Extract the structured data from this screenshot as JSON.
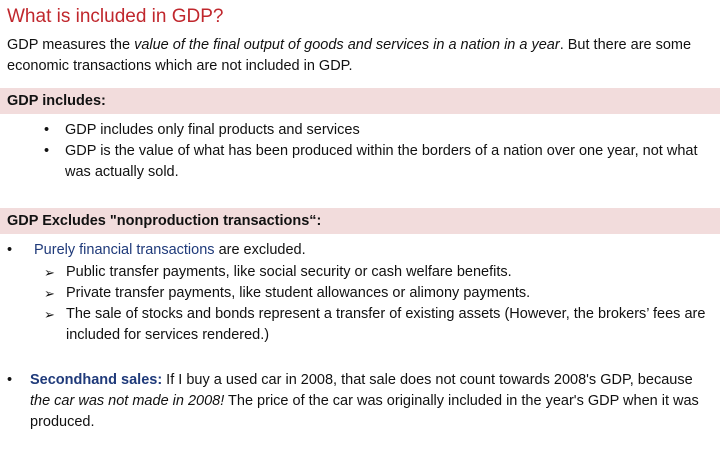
{
  "title": "What is included in GDP?",
  "intro": {
    "part1": "GDP measures the ",
    "italic": "value of the final output of goods and services in a nation in a year",
    "part2": ". But there are some economic transactions which are not included in GDP."
  },
  "includes": {
    "heading": "GDP includes:",
    "items": [
      "GDP includes only final products and services",
      "GDP is the value of what has been produced within the borders of a nation over one year, not what was actually sold."
    ]
  },
  "excludes": {
    "heading": "GDP Excludes \"nonproduction transactions“:",
    "financial": {
      "term": "Purely financial transactions",
      "rest": " are excluded.",
      "subitems": [
        "Public transfer payments, like social security or cash welfare benefits.",
        "Private transfer payments, like student allowances or alimony payments.",
        "The sale of stocks and bonds represent a transfer of existing assets (However, the brokers’ fees are included for services rendered.)"
      ]
    },
    "secondhand": {
      "term": "Secondhand sales:",
      "part1": " If I buy a used car in 2008, that sale does not count towards 2008's GDP, because ",
      "italic": "the car was not made in 2008!",
      "part2": " The price of the car was originally included in the year's GDP when it was produced."
    }
  }
}
